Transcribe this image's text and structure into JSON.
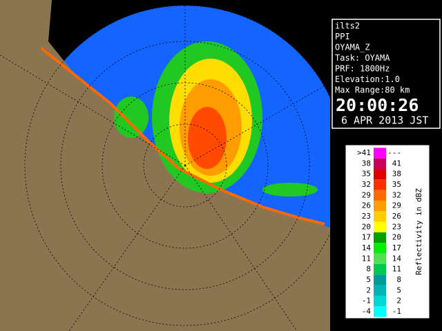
{
  "info": {
    "lines": [
      "ilts2",
      "PPI",
      "OYAMA_Z",
      "Task: OYAMA",
      "PRF: 1800Hz",
      "Elevation:1.0",
      "Max Range:80 km"
    ],
    "time": "20:00:26",
    "date": "6 APR 2013 JST"
  },
  "legend": {
    "title": "Reflectivity in dBZ",
    "rows": [
      {
        "low": ">41",
        "high": "---",
        "color": "#ff00ff"
      },
      {
        "low": "38",
        "high": "41",
        "color": "#c8005a"
      },
      {
        "low": "35",
        "high": "38",
        "color": "#e00000"
      },
      {
        "low": "32",
        "high": "35",
        "color": "#ff3000"
      },
      {
        "low": "29",
        "high": "32",
        "color": "#ff6a00"
      },
      {
        "low": "26",
        "high": "29",
        "color": "#ff9c00"
      },
      {
        "low": "23",
        "high": "26",
        "color": "#ffcc00"
      },
      {
        "low": "20",
        "high": "23",
        "color": "#ffff00"
      },
      {
        "low": "17",
        "high": "20",
        "color": "#00a000"
      },
      {
        "low": "14",
        "high": "17",
        "color": "#00ee00"
      },
      {
        "low": "11",
        "high": "14",
        "color": "#50e050"
      },
      {
        "low": "8",
        "high": "11",
        "color": "#00c850"
      },
      {
        "low": "5",
        "high": "8",
        "color": "#009a9a"
      },
      {
        "low": "2",
        "high": "5",
        "color": "#00b4b4"
      },
      {
        "low": "-1",
        "high": "2",
        "color": "#00d8d8"
      },
      {
        "low": "-4",
        "high": "-1",
        "color": "#00ffff"
      }
    ]
  }
}
